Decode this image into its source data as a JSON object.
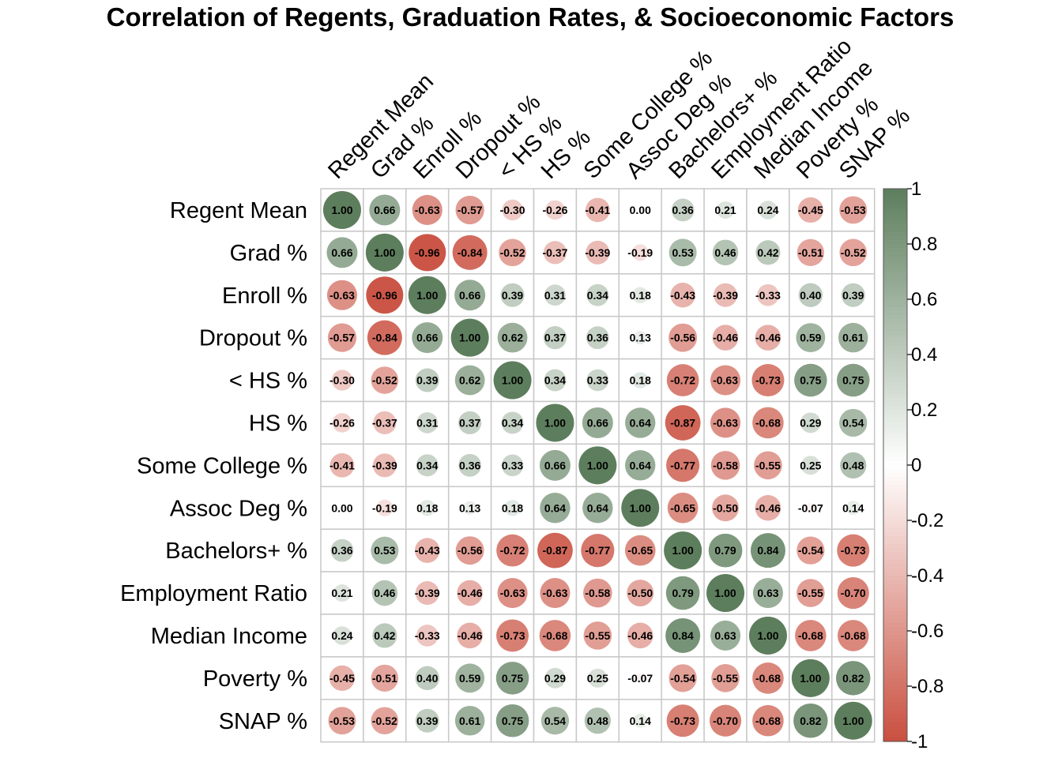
{
  "chart_data": {
    "type": "heatmap",
    "title": "Correlation of Regents, Graduation Rates, & Socioeconomic Factors",
    "labels": [
      "Regent Mean",
      "Grad %",
      "Enroll %",
      "Dropout %",
      "< HS %",
      "HS %",
      "Some College %",
      "Assoc Deg %",
      "Bachelors+ %",
      "Employment Ratio",
      "Median Income",
      "Poverty %",
      "SNAP %"
    ],
    "matrix": [
      [
        1.0,
        0.66,
        -0.63,
        -0.57,
        -0.3,
        -0.26,
        -0.41,
        0.0,
        0.36,
        0.21,
        0.24,
        -0.45,
        -0.53
      ],
      [
        0.66,
        1.0,
        -0.96,
        -0.84,
        -0.52,
        -0.37,
        -0.39,
        -0.19,
        0.53,
        0.46,
        0.42,
        -0.51,
        -0.52
      ],
      [
        -0.63,
        -0.96,
        1.0,
        0.66,
        0.39,
        0.31,
        0.34,
        0.18,
        -0.43,
        -0.39,
        -0.33,
        0.4,
        0.39
      ],
      [
        -0.57,
        -0.84,
        0.66,
        1.0,
        0.62,
        0.37,
        0.36,
        0.13,
        -0.56,
        -0.46,
        -0.46,
        0.59,
        0.61
      ],
      [
        -0.3,
        -0.52,
        0.39,
        0.62,
        1.0,
        0.34,
        0.33,
        0.18,
        -0.72,
        -0.63,
        -0.73,
        0.75,
        0.75
      ],
      [
        -0.26,
        -0.37,
        0.31,
        0.37,
        0.34,
        1.0,
        0.66,
        0.64,
        -0.87,
        -0.63,
        -0.68,
        0.29,
        0.54
      ],
      [
        -0.41,
        -0.39,
        0.34,
        0.36,
        0.33,
        0.66,
        1.0,
        0.64,
        -0.77,
        -0.58,
        -0.55,
        0.25,
        0.48
      ],
      [
        0.0,
        -0.19,
        0.18,
        0.13,
        0.18,
        0.64,
        0.64,
        1.0,
        -0.65,
        -0.5,
        -0.46,
        -0.07,
        0.14
      ],
      [
        0.36,
        0.53,
        -0.43,
        -0.56,
        -0.72,
        -0.87,
        -0.77,
        -0.65,
        1.0,
        0.79,
        0.84,
        -0.54,
        -0.73
      ],
      [
        0.21,
        0.46,
        -0.39,
        -0.46,
        -0.63,
        -0.63,
        -0.58,
        -0.5,
        0.79,
        1.0,
        0.63,
        -0.55,
        -0.7
      ],
      [
        0.24,
        0.42,
        -0.33,
        -0.46,
        -0.73,
        -0.68,
        -0.55,
        -0.46,
        0.84,
        0.63,
        1.0,
        -0.68,
        -0.68
      ],
      [
        -0.45,
        -0.51,
        0.4,
        0.59,
        0.75,
        0.29,
        0.25,
        -0.07,
        -0.54,
        -0.55,
        -0.68,
        1.0,
        0.82
      ],
      [
        -0.53,
        -0.52,
        0.39,
        0.61,
        0.75,
        0.54,
        0.48,
        0.14,
        -0.73,
        -0.7,
        -0.68,
        0.82,
        1.0
      ]
    ],
    "value_range": [
      -1,
      1
    ],
    "colorbar_ticks": [
      "1",
      "0.8",
      "0.6",
      "0.4",
      "0.2",
      "0",
      "-0.2",
      "-0.4",
      "-0.6",
      "-0.8",
      "-1"
    ],
    "colors": {
      "negative": "#c94f3f",
      "neutral": "#ffffff",
      "positive": "#5d7e5d"
    },
    "legend_position": "right",
    "grid": true
  }
}
